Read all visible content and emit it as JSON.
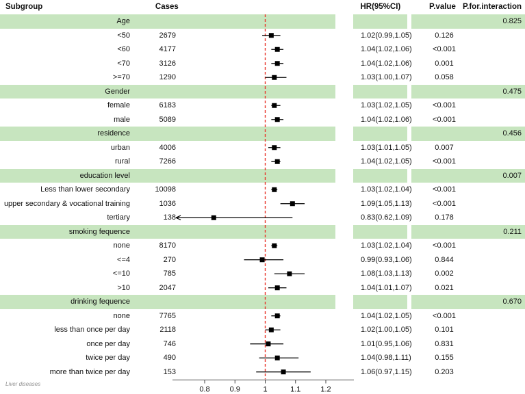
{
  "figure": {
    "footnote": "Liver diseases"
  },
  "header": {
    "subgroup": "Subgroup",
    "cases": "Cases",
    "hr": "HR(95%CI)",
    "pvalue": "P.value",
    "pinteraction": "P.for.interaction"
  },
  "colors": {
    "band": "#c7e5bf",
    "ref_line": "#e8352b",
    "marker": "#000000",
    "axis": "#444444"
  },
  "chart_data": {
    "type": "forest",
    "ref_line_value": 1,
    "axis_ticks": [
      {
        "v": 0.8,
        "label": "0.8"
      },
      {
        "v": 0.9,
        "label": "0.9"
      },
      {
        "v": 1.0,
        "label": "1"
      },
      {
        "v": 1.1,
        "label": "1.1"
      },
      {
        "v": 1.2,
        "label": "1.2"
      }
    ],
    "clip_domain": [
      0.71,
      1.28
    ],
    "groups": [
      {
        "label": "Age",
        "p_interaction": "0.825",
        "rows": [
          {
            "label": "<50",
            "cases": "2679",
            "hr": 1.02,
            "lo": 0.99,
            "hi": 1.05,
            "hr_text": "1.02(0.99,1.05)",
            "p": "0.126"
          },
          {
            "label": "<60",
            "cases": "4177",
            "hr": 1.04,
            "lo": 1.02,
            "hi": 1.06,
            "hr_text": "1.04(1.02,1.06)",
            "p": "<0.001"
          },
          {
            "label": "<70",
            "cases": "3126",
            "hr": 1.04,
            "lo": 1.02,
            "hi": 1.06,
            "hr_text": "1.04(1.02,1.06)",
            "p": "0.001"
          },
          {
            "label": ">=70",
            "cases": "1290",
            "hr": 1.03,
            "lo": 1.0,
            "hi": 1.07,
            "hr_text": "1.03(1.00,1.07)",
            "p": "0.058"
          }
        ]
      },
      {
        "label": "Gender",
        "p_interaction": "0.475",
        "rows": [
          {
            "label": "female",
            "cases": "6183",
            "hr": 1.03,
            "lo": 1.02,
            "hi": 1.05,
            "hr_text": "1.03(1.02,1.05)",
            "p": "<0.001"
          },
          {
            "label": "male",
            "cases": "5089",
            "hr": 1.04,
            "lo": 1.02,
            "hi": 1.06,
            "hr_text": "1.04(1.02,1.06)",
            "p": "<0.001"
          }
        ]
      },
      {
        "label": "residence",
        "p_interaction": "0.456",
        "rows": [
          {
            "label": "urban",
            "cases": "4006",
            "hr": 1.03,
            "lo": 1.01,
            "hi": 1.05,
            "hr_text": "1.03(1.01,1.05)",
            "p": "0.007"
          },
          {
            "label": "rural",
            "cases": "7266",
            "hr": 1.04,
            "lo": 1.02,
            "hi": 1.05,
            "hr_text": "1.04(1.02,1.05)",
            "p": "<0.001"
          }
        ]
      },
      {
        "label": "education level",
        "p_interaction": "0.007",
        "rows": [
          {
            "label": "Less than lower secondary",
            "cases": "10098",
            "hr": 1.03,
            "lo": 1.02,
            "hi": 1.04,
            "hr_text": "1.03(1.02,1.04)",
            "p": "<0.001"
          },
          {
            "label": "upper secondary & vocational training",
            "cases": "1036",
            "hr": 1.09,
            "lo": 1.05,
            "hi": 1.13,
            "hr_text": "1.09(1.05,1.13)",
            "p": "<0.001"
          },
          {
            "label": "tertiary",
            "cases": "138",
            "hr": 0.83,
            "lo": 0.62,
            "hi": 1.09,
            "hr_text": "0.83(0.62,1.09)",
            "p": "0.178"
          }
        ]
      },
      {
        "label": "smoking fequence",
        "p_interaction": "0.211",
        "rows": [
          {
            "label": "none",
            "cases": "8170",
            "hr": 1.03,
            "lo": 1.02,
            "hi": 1.04,
            "hr_text": "1.03(1.02,1.04)",
            "p": "<0.001"
          },
          {
            "label": "<=4",
            "cases": "270",
            "hr": 0.99,
            "lo": 0.93,
            "hi": 1.06,
            "hr_text": "0.99(0.93,1.06)",
            "p": "0.844"
          },
          {
            "label": "<=10",
            "cases": "785",
            "hr": 1.08,
            "lo": 1.03,
            "hi": 1.13,
            "hr_text": "1.08(1.03,1.13)",
            "p": "0.002"
          },
          {
            "label": ">10",
            "cases": "2047",
            "hr": 1.04,
            "lo": 1.01,
            "hi": 1.07,
            "hr_text": "1.04(1.01,1.07)",
            "p": "0.021"
          }
        ]
      },
      {
        "label": "drinking fequence",
        "p_interaction": "0.670",
        "rows": [
          {
            "label": "none",
            "cases": "7765",
            "hr": 1.04,
            "lo": 1.02,
            "hi": 1.05,
            "hr_text": "1.04(1.02,1.05)",
            "p": "<0.001"
          },
          {
            "label": "less than once per day",
            "cases": "2118",
            "hr": 1.02,
            "lo": 1.0,
            "hi": 1.05,
            "hr_text": "1.02(1.00,1.05)",
            "p": "0.101"
          },
          {
            "label": "once per day",
            "cases": "746",
            "hr": 1.01,
            "lo": 0.95,
            "hi": 1.06,
            "hr_text": "1.01(0.95,1.06)",
            "p": "0.831"
          },
          {
            "label": "twice per day",
            "cases": "490",
            "hr": 1.04,
            "lo": 0.98,
            "hi": 1.11,
            "hr_text": "1.04(0.98,1.11)",
            "p": "0.155"
          },
          {
            "label": "more than twice per day",
            "cases": "153",
            "hr": 1.06,
            "lo": 0.97,
            "hi": 1.15,
            "hr_text": "1.06(0.97,1.15)",
            "p": "0.203"
          }
        ]
      }
    ]
  }
}
